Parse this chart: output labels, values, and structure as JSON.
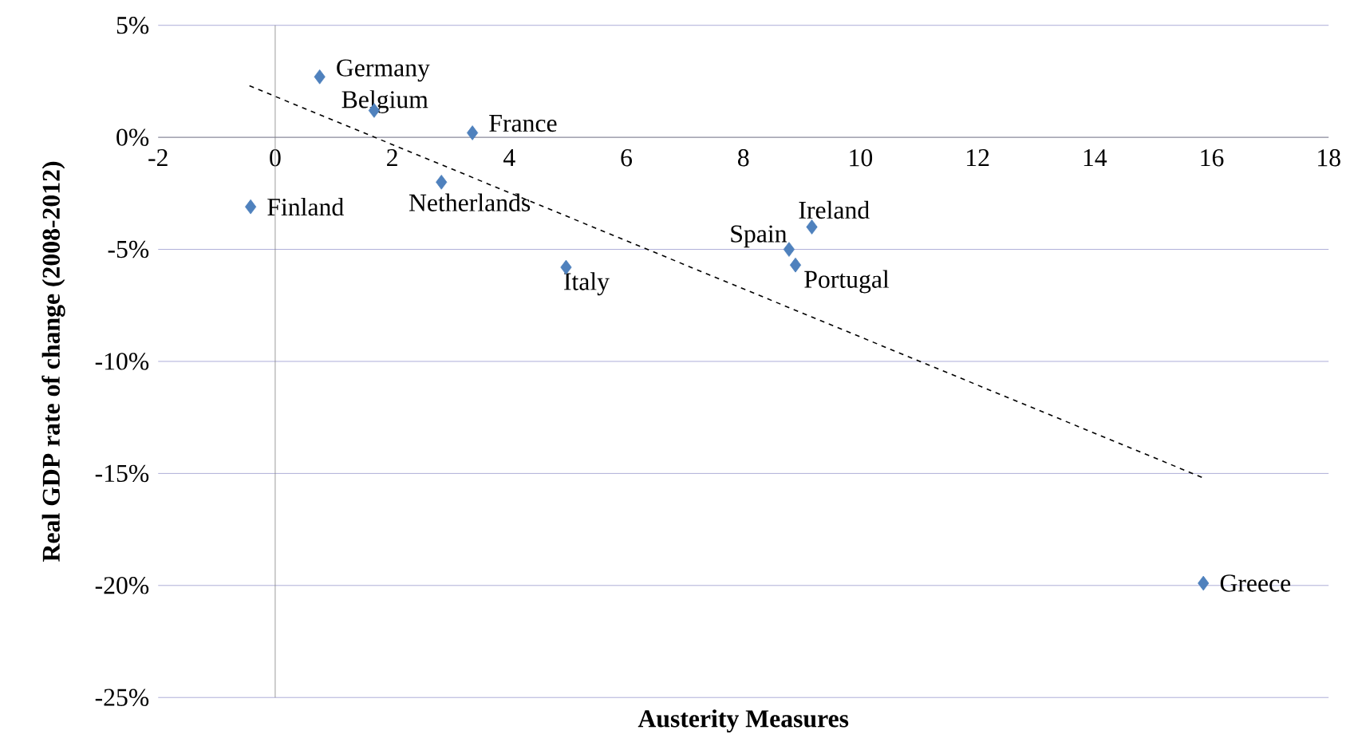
{
  "chart_data": {
    "type": "scatter",
    "xlabel": "Austerity Measures",
    "ylabel": "Real GDP rate of change (2008-2012)",
    "series": [
      {
        "color": "#4f81bd",
        "marker": "diamond",
        "x": [
          0.76,
          1.69,
          3.37,
          2.84,
          -0.42,
          4.97,
          8.78,
          8.89,
          9.17,
          15.86
        ],
        "values": [
          2.7,
          1.2,
          0.2,
          -2.0,
          -3.1,
          -5.8,
          -5.0,
          -5.7,
          -4.0,
          -19.9
        ]
      },
      {
        "type": "line",
        "color": "#000000",
        "marker": "none",
        "line_style": "dashed",
        "x": [
          -0.44,
          15.86
        ],
        "values": [
          2.3,
          -15.2
        ]
      }
    ],
    "annotations": [
      {
        "text": "Germany",
        "x": 0.76,
        "y": 2.7
      },
      {
        "text": "Belgium",
        "x": 1.69,
        "y": 1.2
      },
      {
        "text": "France",
        "x": 3.37,
        "y": 0.2
      },
      {
        "text": "Netherlands",
        "x": 2.84,
        "y": -2.0
      },
      {
        "text": "Finland",
        "x": -0.42,
        "y": -3.1
      },
      {
        "text": "Italy",
        "x": 4.97,
        "y": -5.8
      },
      {
        "text": "Spain",
        "x": 8.78,
        "y": -5.0
      },
      {
        "text": "Portugal",
        "x": 8.89,
        "y": -5.7
      },
      {
        "text": "Ireland",
        "x": 9.17,
        "y": -4.0
      },
      {
        "text": "Greece",
        "x": 15.86,
        "y": -19.9
      }
    ],
    "xlim": [
      -2,
      18
    ],
    "xticks": [
      -2,
      0,
      2,
      4,
      6,
      8,
      10,
      12,
      14,
      16,
      18
    ],
    "ylim": [
      -25,
      5
    ],
    "yticks": [
      {
        "value": -25,
        "label": "-25%"
      },
      {
        "value": -20,
        "label": "-20%"
      },
      {
        "value": -15,
        "label": "-15%"
      },
      {
        "value": -10,
        "label": "-10%"
      },
      {
        "value": -5,
        "label": "-5%"
      },
      {
        "value": 0,
        "label": "0%"
      },
      {
        "value": 5,
        "label": "5%"
      }
    ],
    "grid": "y"
  }
}
